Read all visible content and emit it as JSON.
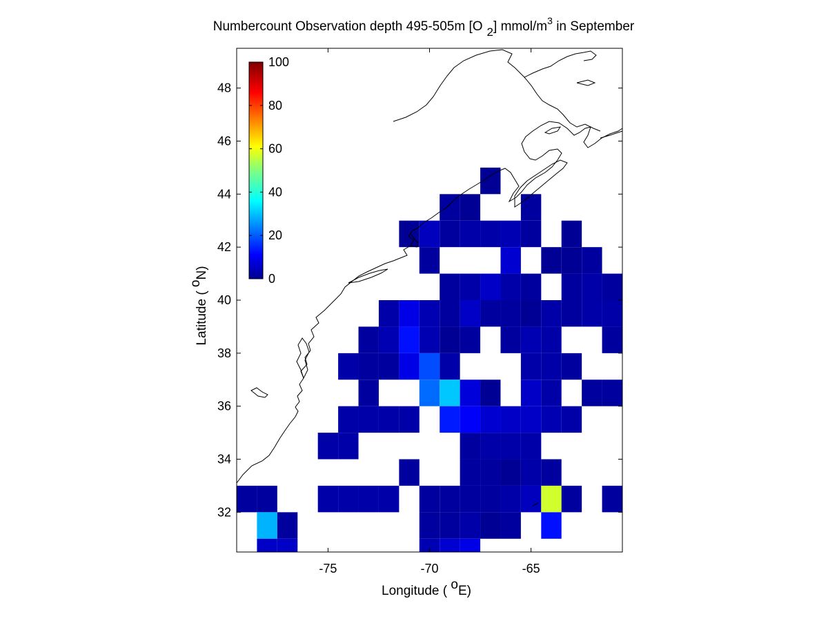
{
  "chart_data": {
    "type": "heatmap",
    "title": {
      "part1": "Numbercount Observation depth 495-505m [O",
      "sub": "2",
      "part2": "] mmol/m",
      "sup": "3",
      "part3": " in September"
    },
    "xlabel": {
      "pre": "Longitude ( ",
      "sup": "o",
      "post": "E)"
    },
    "ylabel": {
      "pre": "Latitude ( ",
      "sup": "o",
      "post": "N)"
    },
    "xlim": [
      -79.5,
      -60.5
    ],
    "ylim": [
      30.5,
      49.5
    ],
    "xticks": [
      -75,
      -70,
      -65
    ],
    "yticks": [
      32,
      34,
      36,
      38,
      40,
      42,
      44,
      46,
      48
    ],
    "cell_size_deg": 1,
    "colorbar": {
      "min": 0,
      "max": 100,
      "ticks": [
        0,
        20,
        40,
        60,
        80,
        100
      ],
      "colormap": "jet"
    },
    "cells": [
      {
        "lon": -67,
        "lat": 44.5,
        "value": 2
      },
      {
        "lon": -69,
        "lat": 43.5,
        "value": 3
      },
      {
        "lon": -68,
        "lat": 43.5,
        "value": 2
      },
      {
        "lon": -65,
        "lat": 43.5,
        "value": 3
      },
      {
        "lon": -71,
        "lat": 42.5,
        "value": 2
      },
      {
        "lon": -70,
        "lat": 42.5,
        "value": 6
      },
      {
        "lon": -69,
        "lat": 42.5,
        "value": 3
      },
      {
        "lon": -68,
        "lat": 42.5,
        "value": 4
      },
      {
        "lon": -67,
        "lat": 42.5,
        "value": 4
      },
      {
        "lon": -66,
        "lat": 42.5,
        "value": 5
      },
      {
        "lon": -65,
        "lat": 42.5,
        "value": 3
      },
      {
        "lon": -63,
        "lat": 42.5,
        "value": 2
      },
      {
        "lon": -70,
        "lat": 41.5,
        "value": 3
      },
      {
        "lon": -66,
        "lat": 41.5,
        "value": 8
      },
      {
        "lon": -64,
        "lat": 41.5,
        "value": 2
      },
      {
        "lon": -63,
        "lat": 41.5,
        "value": 2
      },
      {
        "lon": -62,
        "lat": 41.5,
        "value": 3
      },
      {
        "lon": -69,
        "lat": 40.5,
        "value": 3
      },
      {
        "lon": -68,
        "lat": 40.5,
        "value": 4
      },
      {
        "lon": -67,
        "lat": 40.5,
        "value": 7
      },
      {
        "lon": -66,
        "lat": 40.5,
        "value": 4
      },
      {
        "lon": -65,
        "lat": 40.5,
        "value": 3
      },
      {
        "lon": -63,
        "lat": 40.5,
        "value": 3
      },
      {
        "lon": -62,
        "lat": 40.5,
        "value": 4
      },
      {
        "lon": -61,
        "lat": 40.5,
        "value": 3
      },
      {
        "lon": -72,
        "lat": 39.5,
        "value": 4
      },
      {
        "lon": -71,
        "lat": 39.5,
        "value": 10
      },
      {
        "lon": -70,
        "lat": 39.5,
        "value": 5
      },
      {
        "lon": -69,
        "lat": 39.5,
        "value": 3
      },
      {
        "lon": -68,
        "lat": 39.5,
        "value": 7
      },
      {
        "lon": -67,
        "lat": 39.5,
        "value": 3
      },
      {
        "lon": -66,
        "lat": 39.5,
        "value": 3
      },
      {
        "lon": -65,
        "lat": 39.5,
        "value": 2
      },
      {
        "lon": -64,
        "lat": 39.5,
        "value": 4
      },
      {
        "lon": -63,
        "lat": 39.5,
        "value": 3
      },
      {
        "lon": -62,
        "lat": 39.5,
        "value": 4
      },
      {
        "lon": -61,
        "lat": 39.5,
        "value": 4
      },
      {
        "lon": -73,
        "lat": 38.5,
        "value": 3
      },
      {
        "lon": -72,
        "lat": 38.5,
        "value": 5
      },
      {
        "lon": -71,
        "lat": 38.5,
        "value": 14
      },
      {
        "lon": -70,
        "lat": 38.5,
        "value": 5
      },
      {
        "lon": -69,
        "lat": 38.5,
        "value": 2
      },
      {
        "lon": -68,
        "lat": 38.5,
        "value": 3
      },
      {
        "lon": -66,
        "lat": 38.5,
        "value": 3
      },
      {
        "lon": -65,
        "lat": 38.5,
        "value": 5
      },
      {
        "lon": -64,
        "lat": 38.5,
        "value": 4
      },
      {
        "lon": -61,
        "lat": 38.5,
        "value": 3
      },
      {
        "lon": -74,
        "lat": 37.5,
        "value": 4
      },
      {
        "lon": -73,
        "lat": 37.5,
        "value": 3
      },
      {
        "lon": -72,
        "lat": 37.5,
        "value": 3
      },
      {
        "lon": -71,
        "lat": 37.5,
        "value": 10
      },
      {
        "lon": -70,
        "lat": 37.5,
        "value": 20
      },
      {
        "lon": -69,
        "lat": 37.5,
        "value": 4
      },
      {
        "lon": -65,
        "lat": 37.5,
        "value": 4
      },
      {
        "lon": -64,
        "lat": 37.5,
        "value": 4
      },
      {
        "lon": -63,
        "lat": 37.5,
        "value": 3
      },
      {
        "lon": -73,
        "lat": 36.5,
        "value": 3
      },
      {
        "lon": -70,
        "lat": 36.5,
        "value": 23
      },
      {
        "lon": -69,
        "lat": 36.5,
        "value": 32
      },
      {
        "lon": -68,
        "lat": 36.5,
        "value": 9
      },
      {
        "lon": -67,
        "lat": 36.5,
        "value": 2
      },
      {
        "lon": -65,
        "lat": 36.5,
        "value": 7
      },
      {
        "lon": -64,
        "lat": 36.5,
        "value": 4
      },
      {
        "lon": -62,
        "lat": 36.5,
        "value": 3
      },
      {
        "lon": -61,
        "lat": 36.5,
        "value": 3
      },
      {
        "lon": -74,
        "lat": 35.5,
        "value": 4
      },
      {
        "lon": -73,
        "lat": 35.5,
        "value": 4
      },
      {
        "lon": -72,
        "lat": 35.5,
        "value": 4
      },
      {
        "lon": -71,
        "lat": 35.5,
        "value": 4
      },
      {
        "lon": -69,
        "lat": 35.5,
        "value": 15
      },
      {
        "lon": -68,
        "lat": 35.5,
        "value": 12
      },
      {
        "lon": -67,
        "lat": 35.5,
        "value": 8
      },
      {
        "lon": -66,
        "lat": 35.5,
        "value": 7
      },
      {
        "lon": -65,
        "lat": 35.5,
        "value": 7
      },
      {
        "lon": -64,
        "lat": 35.5,
        "value": 5
      },
      {
        "lon": -63,
        "lat": 35.5,
        "value": 4
      },
      {
        "lon": -75,
        "lat": 34.5,
        "value": 4
      },
      {
        "lon": -74,
        "lat": 34.5,
        "value": 4
      },
      {
        "lon": -68,
        "lat": 34.5,
        "value": 3
      },
      {
        "lon": -67,
        "lat": 34.5,
        "value": 4
      },
      {
        "lon": -66,
        "lat": 34.5,
        "value": 4
      },
      {
        "lon": -65,
        "lat": 34.5,
        "value": 4
      },
      {
        "lon": -68,
        "lat": 33.5,
        "value": 3
      },
      {
        "lon": -67,
        "lat": 33.5,
        "value": 3
      },
      {
        "lon": -66,
        "lat": 33.5,
        "value": 2
      },
      {
        "lon": -65,
        "lat": 33.5,
        "value": 4
      },
      {
        "lon": -64,
        "lat": 33.5,
        "value": 3
      },
      {
        "lon": -71,
        "lat": 33.5,
        "value": 3
      },
      {
        "lon": -79,
        "lat": 32.5,
        "value": 3
      },
      {
        "lon": -78,
        "lat": 32.5,
        "value": 3
      },
      {
        "lon": -75,
        "lat": 32.5,
        "value": 4
      },
      {
        "lon": -74,
        "lat": 32.5,
        "value": 4
      },
      {
        "lon": -73,
        "lat": 32.5,
        "value": 4
      },
      {
        "lon": -72,
        "lat": 32.5,
        "value": 4
      },
      {
        "lon": -70,
        "lat": 32.5,
        "value": 3
      },
      {
        "lon": -69,
        "lat": 32.5,
        "value": 3
      },
      {
        "lon": -68,
        "lat": 32.5,
        "value": 3
      },
      {
        "lon": -67,
        "lat": 32.5,
        "value": 3
      },
      {
        "lon": -66,
        "lat": 32.5,
        "value": 4
      },
      {
        "lon": -65,
        "lat": 32.5,
        "value": 6
      },
      {
        "lon": -64,
        "lat": 32.5,
        "value": 58
      },
      {
        "lon": -63,
        "lat": 32.5,
        "value": 3
      },
      {
        "lon": -61,
        "lat": 32.5,
        "value": 3
      },
      {
        "lon": -78,
        "lat": 31.5,
        "value": 30
      },
      {
        "lon": -77,
        "lat": 31.5,
        "value": 3
      },
      {
        "lon": -69,
        "lat": 31.5,
        "value": 3
      },
      {
        "lon": -68,
        "lat": 31.5,
        "value": 4
      },
      {
        "lon": -67,
        "lat": 31.5,
        "value": 2
      },
      {
        "lon": -66,
        "lat": 31.5,
        "value": 3
      },
      {
        "lon": -70,
        "lat": 31.5,
        "value": 3
      },
      {
        "lon": -64,
        "lat": 31.5,
        "value": 14
      },
      {
        "lon": -78,
        "lat": 30.5,
        "value": 7
      },
      {
        "lon": -77,
        "lat": 30.5,
        "value": 7
      },
      {
        "lon": -70,
        "lat": 30.5,
        "value": 5
      },
      {
        "lon": -69,
        "lat": 30.5,
        "value": 8
      },
      {
        "lon": -68,
        "lat": 30.5,
        "value": 10
      }
    ]
  }
}
